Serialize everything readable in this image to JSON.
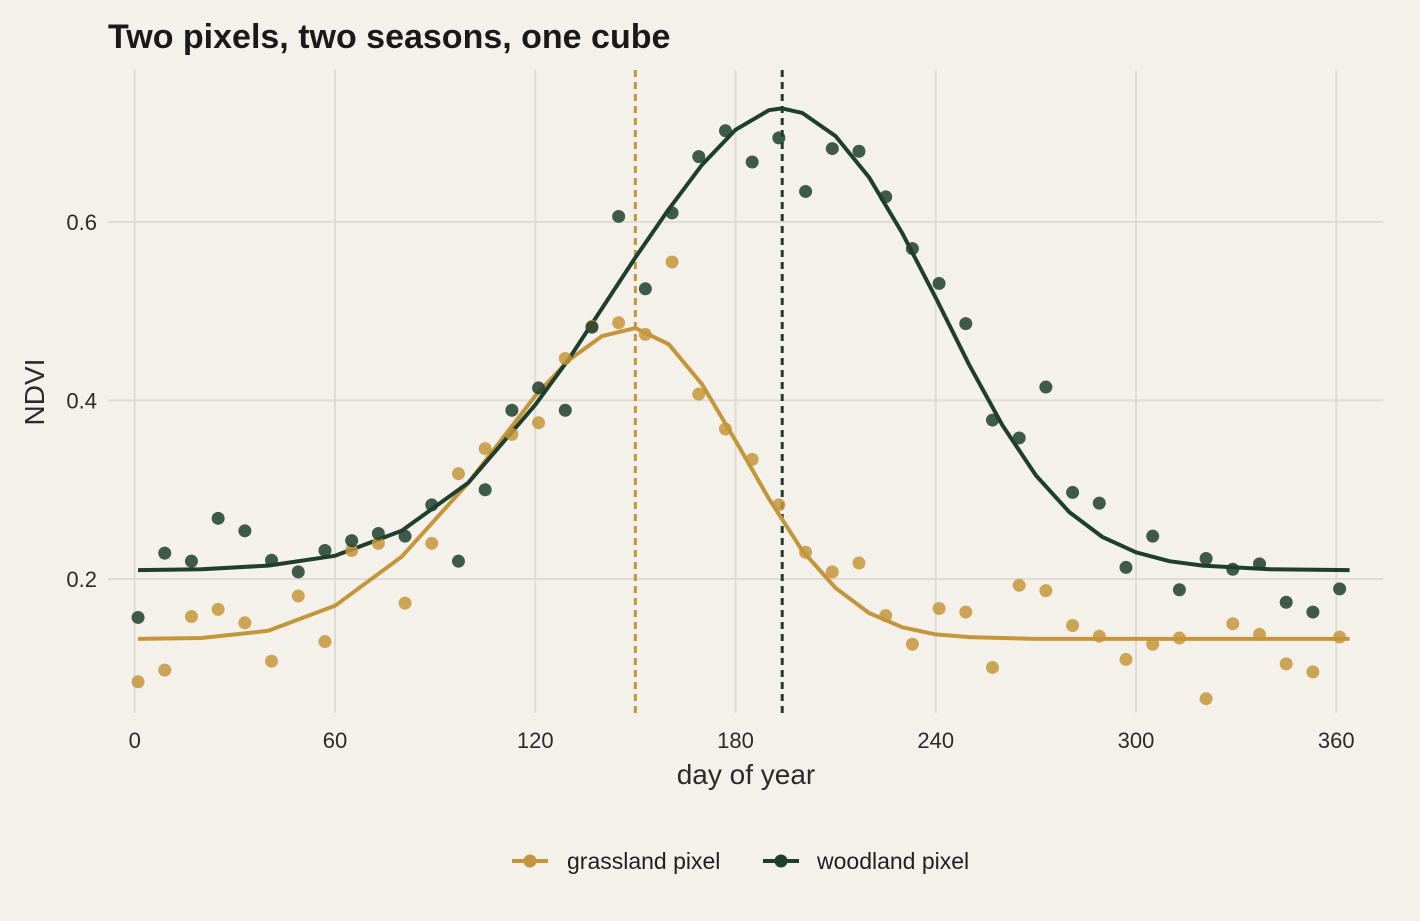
{
  "chart_data": {
    "type": "scatter",
    "title": "Two pixels, two seasons, one cube",
    "xlabel": "day of year",
    "ylabel": "NDVI",
    "xlim": [
      -8,
      374
    ],
    "ylim": [
      0.05,
      0.77
    ],
    "x_ticks": [
      0,
      60,
      120,
      180,
      240,
      300,
      360
    ],
    "y_ticks": [
      0.2,
      0.4,
      0.6
    ],
    "grid": true,
    "legend_position": "bottom",
    "series": [
      {
        "name": "grassland pixel",
        "color": "#c4963c",
        "peak_day": 150,
        "points": [
          [
            1,
            0.085
          ],
          [
            9,
            0.098
          ],
          [
            17,
            0.158
          ],
          [
            25,
            0.166
          ],
          [
            33,
            0.151
          ],
          [
            41,
            0.108
          ],
          [
            49,
            0.181
          ],
          [
            57,
            0.13
          ],
          [
            65,
            0.232
          ],
          [
            73,
            0.24
          ],
          [
            81,
            0.173
          ],
          [
            89,
            0.24
          ],
          [
            97,
            0.318
          ],
          [
            105,
            0.346
          ],
          [
            113,
            0.362
          ],
          [
            121,
            0.375
          ],
          [
            129,
            0.447
          ],
          [
            137,
            0.483
          ],
          [
            145,
            0.487
          ],
          [
            153,
            0.474
          ],
          [
            161,
            0.555
          ],
          [
            169,
            0.407
          ],
          [
            177,
            0.368
          ],
          [
            185,
            0.334
          ],
          [
            193,
            0.283
          ],
          [
            201,
            0.23
          ],
          [
            209,
            0.208
          ],
          [
            217,
            0.218
          ],
          [
            225,
            0.159
          ],
          [
            233,
            0.127
          ],
          [
            241,
            0.167
          ],
          [
            249,
            0.163
          ],
          [
            257,
            0.101
          ],
          [
            265,
            0.193
          ],
          [
            273,
            0.187
          ],
          [
            281,
            0.148
          ],
          [
            289,
            0.136
          ],
          [
            297,
            0.11
          ],
          [
            305,
            0.127
          ],
          [
            313,
            0.134
          ],
          [
            321,
            0.066
          ],
          [
            329,
            0.15
          ],
          [
            337,
            0.138
          ],
          [
            345,
            0.105
          ],
          [
            353,
            0.096
          ],
          [
            361,
            0.135
          ]
        ],
        "curve": [
          [
            1,
            0.133
          ],
          [
            20,
            0.134
          ],
          [
            40,
            0.142
          ],
          [
            60,
            0.17
          ],
          [
            80,
            0.225
          ],
          [
            100,
            0.308
          ],
          [
            120,
            0.405
          ],
          [
            130,
            0.445
          ],
          [
            140,
            0.472
          ],
          [
            150,
            0.481
          ],
          [
            160,
            0.463
          ],
          [
            170,
            0.418
          ],
          [
            180,
            0.355
          ],
          [
            190,
            0.29
          ],
          [
            200,
            0.232
          ],
          [
            210,
            0.19
          ],
          [
            220,
            0.162
          ],
          [
            230,
            0.146
          ],
          [
            240,
            0.138
          ],
          [
            250,
            0.135
          ],
          [
            270,
            0.133
          ],
          [
            300,
            0.133
          ],
          [
            330,
            0.133
          ],
          [
            364,
            0.133
          ]
        ]
      },
      {
        "name": "woodland pixel",
        "color": "#1f3f2e",
        "peak_day": 194,
        "points": [
          [
            1,
            0.157
          ],
          [
            9,
            0.229
          ],
          [
            17,
            0.22
          ],
          [
            25,
            0.268
          ],
          [
            33,
            0.254
          ],
          [
            41,
            0.221
          ],
          [
            49,
            0.208
          ],
          [
            57,
            0.232
          ],
          [
            65,
            0.243
          ],
          [
            73,
            0.251
          ],
          [
            81,
            0.248
          ],
          [
            89,
            0.283
          ],
          [
            97,
            0.22
          ],
          [
            105,
            0.3
          ],
          [
            113,
            0.389
          ],
          [
            121,
            0.414
          ],
          [
            129,
            0.389
          ],
          [
            137,
            0.482
          ],
          [
            145,
            0.606
          ],
          [
            153,
            0.525
          ],
          [
            161,
            0.61
          ],
          [
            169,
            0.673
          ],
          [
            177,
            0.702
          ],
          [
            185,
            0.667
          ],
          [
            193,
            0.694
          ],
          [
            201,
            0.634
          ],
          [
            209,
            0.682
          ],
          [
            217,
            0.679
          ],
          [
            225,
            0.628
          ],
          [
            233,
            0.57
          ],
          [
            241,
            0.531
          ],
          [
            249,
            0.486
          ],
          [
            257,
            0.378
          ],
          [
            265,
            0.358
          ],
          [
            273,
            0.415
          ],
          [
            281,
            0.297
          ],
          [
            289,
            0.285
          ],
          [
            297,
            0.213
          ],
          [
            305,
            0.248
          ],
          [
            313,
            0.188
          ],
          [
            321,
            0.223
          ],
          [
            329,
            0.211
          ],
          [
            337,
            0.217
          ],
          [
            345,
            0.174
          ],
          [
            353,
            0.163
          ],
          [
            361,
            0.189
          ]
        ],
        "curve": [
          [
            1,
            0.21
          ],
          [
            20,
            0.211
          ],
          [
            40,
            0.215
          ],
          [
            60,
            0.226
          ],
          [
            80,
            0.254
          ],
          [
            100,
            0.308
          ],
          [
            120,
            0.395
          ],
          [
            130,
            0.446
          ],
          [
            140,
            0.503
          ],
          [
            150,
            0.56
          ],
          [
            160,
            0.614
          ],
          [
            170,
            0.664
          ],
          [
            180,
            0.703
          ],
          [
            190,
            0.725
          ],
          [
            194,
            0.727
          ],
          [
            200,
            0.722
          ],
          [
            210,
            0.696
          ],
          [
            220,
            0.65
          ],
          [
            230,
            0.587
          ],
          [
            240,
            0.515
          ],
          [
            250,
            0.44
          ],
          [
            260,
            0.372
          ],
          [
            270,
            0.316
          ],
          [
            280,
            0.275
          ],
          [
            290,
            0.247
          ],
          [
            300,
            0.23
          ],
          [
            310,
            0.22
          ],
          [
            320,
            0.215
          ],
          [
            340,
            0.211
          ],
          [
            364,
            0.21
          ]
        ]
      }
    ]
  }
}
